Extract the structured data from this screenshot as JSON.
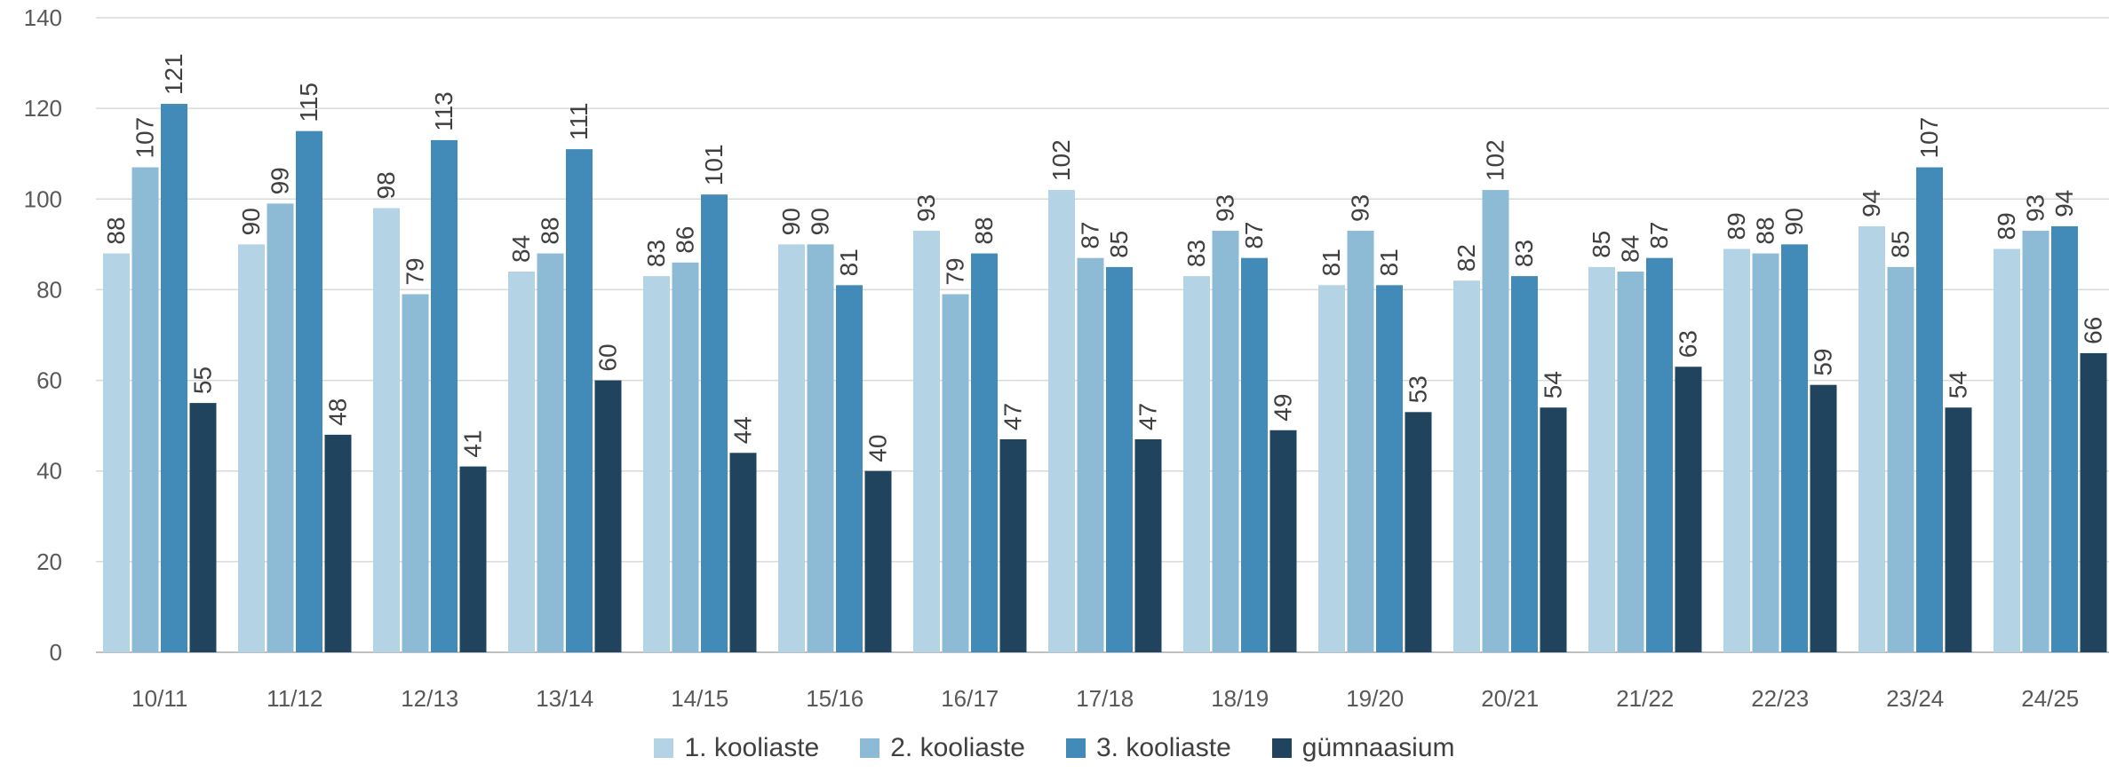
{
  "chart_data": {
    "type": "bar",
    "categories": [
      "10/11",
      "11/12",
      "12/13",
      "13/14",
      "14/15",
      "15/16",
      "16/17",
      "17/18",
      "18/19",
      "19/20",
      "20/21",
      "21/22",
      "22/23",
      "23/24",
      "24/25"
    ],
    "series": [
      {
        "name": "1. kooliaste",
        "color": "#b4d3e5",
        "values": [
          88,
          90,
          98,
          84,
          83,
          90,
          93,
          102,
          83,
          81,
          82,
          85,
          89,
          94,
          89
        ]
      },
      {
        "name": "2. kooliaste",
        "color": "#8dbbd6",
        "values": [
          107,
          99,
          79,
          88,
          86,
          90,
          79,
          87,
          93,
          93,
          102,
          84,
          88,
          85,
          93
        ]
      },
      {
        "name": "3. kooliaste",
        "color": "#428bb8",
        "values": [
          121,
          115,
          113,
          111,
          101,
          81,
          88,
          85,
          87,
          81,
          83,
          87,
          90,
          107,
          94
        ]
      },
      {
        "name": "gümnaasium",
        "color": "#20445e",
        "values": [
          55,
          48,
          41,
          60,
          44,
          40,
          47,
          47,
          49,
          53,
          54,
          63,
          59,
          54,
          66
        ]
      }
    ],
    "ylim": [
      0,
      140
    ],
    "yticks": [
      0,
      20,
      40,
      60,
      80,
      100,
      120,
      140
    ],
    "grid": true,
    "legend_position": "bottom"
  }
}
